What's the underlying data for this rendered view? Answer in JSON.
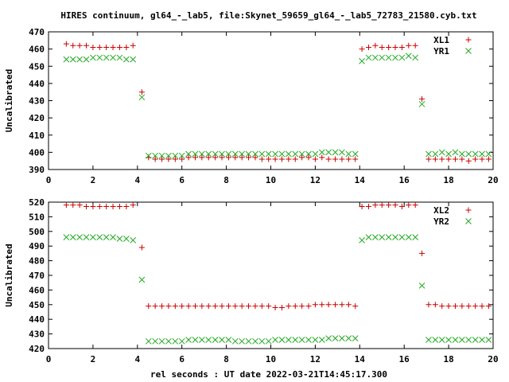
{
  "title": "HIRES continuum, gl64_-_lab5, file:Skynet_59659_gl64_-_lab5_72783_21580.cyb.txt",
  "xlabel": "rel seconds : UT date 2022-03-21T14:45:17.300",
  "colors": {
    "red": "#cc0000",
    "green": "#22aa22"
  },
  "chart_data": [
    {
      "type": "scatter",
      "ylabel": "Uncalibrated",
      "xlim": [
        0,
        20
      ],
      "ylim": [
        390,
        470
      ],
      "xticks": [
        "0",
        "2",
        "4",
        "6",
        "8",
        "10",
        "12",
        "14",
        "16",
        "18",
        "20"
      ],
      "yticks": [
        "390",
        "400",
        "410",
        "420",
        "430",
        "440",
        "450",
        "460",
        "470"
      ],
      "legend_position": "top-right",
      "series": [
        {
          "name": "XL1",
          "marker": "plus",
          "color": "red",
          "x": [
            0.8,
            1.1,
            1.4,
            1.7,
            2.0,
            2.3,
            2.6,
            2.9,
            3.2,
            3.5,
            3.8,
            4.2,
            4.5,
            4.8,
            5.1,
            5.4,
            5.7,
            6.0,
            6.3,
            6.6,
            6.9,
            7.2,
            7.5,
            7.8,
            8.1,
            8.4,
            8.7,
            9.0,
            9.3,
            9.6,
            9.9,
            10.2,
            10.5,
            10.8,
            11.1,
            11.4,
            11.7,
            12.0,
            12.3,
            12.6,
            12.9,
            13.2,
            13.5,
            13.8,
            14.1,
            14.4,
            14.7,
            15.0,
            15.3,
            15.6,
            15.9,
            16.2,
            16.5,
            16.8,
            17.1,
            17.4,
            17.7,
            18.0,
            18.3,
            18.6,
            18.9,
            19.2,
            19.5,
            19.8
          ],
          "y": [
            463,
            462,
            462,
            462,
            461,
            461,
            461,
            461,
            461,
            461,
            462,
            435,
            397,
            396,
            396,
            396,
            396,
            396,
            397,
            397,
            397,
            397,
            397,
            397,
            397,
            397,
            397,
            397,
            397,
            396,
            396,
            396,
            396,
            396,
            396,
            397,
            397,
            396,
            397,
            396,
            396,
            396,
            396,
            396,
            460,
            461,
            462,
            461,
            461,
            461,
            461,
            462,
            462,
            431,
            396,
            396,
            396,
            396,
            396,
            396,
            395,
            396,
            396,
            396
          ]
        },
        {
          "name": "YR1",
          "marker": "cross",
          "color": "green",
          "x": [
            0.8,
            1.1,
            1.4,
            1.7,
            2.0,
            2.3,
            2.6,
            2.9,
            3.2,
            3.5,
            3.8,
            4.2,
            4.5,
            4.8,
            5.1,
            5.4,
            5.7,
            6.0,
            6.3,
            6.6,
            6.9,
            7.2,
            7.5,
            7.8,
            8.1,
            8.4,
            8.7,
            9.0,
            9.3,
            9.6,
            9.9,
            10.2,
            10.5,
            10.8,
            11.1,
            11.4,
            11.7,
            12.0,
            12.3,
            12.6,
            12.9,
            13.2,
            13.5,
            13.8,
            14.1,
            14.4,
            14.7,
            15.0,
            15.3,
            15.6,
            15.9,
            16.2,
            16.5,
            16.8,
            17.1,
            17.4,
            17.7,
            18.0,
            18.3,
            18.6,
            18.9,
            19.2,
            19.5,
            19.8
          ],
          "y": [
            454,
            454,
            454,
            454,
            455,
            455,
            455,
            455,
            455,
            454,
            454,
            432,
            398,
            398,
            398,
            398,
            398,
            398,
            399,
            399,
            399,
            399,
            399,
            399,
            399,
            399,
            399,
            399,
            399,
            399,
            399,
            399,
            399,
            399,
            399,
            399,
            399,
            399,
            400,
            400,
            400,
            400,
            399,
            399,
            453,
            455,
            455,
            455,
            455,
            455,
            455,
            456,
            455,
            428,
            399,
            399,
            400,
            399,
            400,
            399,
            399,
            399,
            399,
            399
          ]
        }
      ]
    },
    {
      "type": "scatter",
      "ylabel": "Uncalibrated",
      "xlim": [
        0,
        20
      ],
      "ylim": [
        420,
        520
      ],
      "xticks": [
        "0",
        "2",
        "4",
        "6",
        "8",
        "10",
        "12",
        "14",
        "16",
        "18",
        "20"
      ],
      "yticks": [
        "420",
        "430",
        "440",
        "450",
        "460",
        "470",
        "480",
        "490",
        "500",
        "510",
        "520"
      ],
      "legend_position": "top-right",
      "series": [
        {
          "name": "XL2",
          "marker": "plus",
          "color": "red",
          "x": [
            0.8,
            1.1,
            1.4,
            1.7,
            2.0,
            2.3,
            2.6,
            2.9,
            3.2,
            3.5,
            3.8,
            4.2,
            4.5,
            4.8,
            5.1,
            5.4,
            5.7,
            6.0,
            6.3,
            6.6,
            6.9,
            7.2,
            7.5,
            7.8,
            8.1,
            8.4,
            8.7,
            9.0,
            9.3,
            9.6,
            9.9,
            10.2,
            10.5,
            10.8,
            11.1,
            11.4,
            11.7,
            12.0,
            12.3,
            12.6,
            12.9,
            13.2,
            13.5,
            13.8,
            14.1,
            14.4,
            14.7,
            15.0,
            15.3,
            15.6,
            15.9,
            16.2,
            16.5,
            16.8,
            17.1,
            17.4,
            17.7,
            18.0,
            18.3,
            18.6,
            18.9,
            19.2,
            19.5,
            19.8
          ],
          "y": [
            518,
            518,
            518,
            517,
            517,
            517,
            517,
            517,
            517,
            517,
            518,
            489,
            449,
            449,
            449,
            449,
            449,
            449,
            449,
            449,
            449,
            449,
            449,
            449,
            449,
            449,
            449,
            449,
            449,
            449,
            449,
            448,
            448,
            449,
            449,
            449,
            449,
            450,
            450,
            450,
            450,
            450,
            450,
            449,
            517,
            517,
            518,
            518,
            518,
            518,
            517,
            518,
            518,
            485,
            450,
            450,
            449,
            449,
            449,
            449,
            449,
            449,
            449,
            449
          ]
        },
        {
          "name": "YR2",
          "marker": "cross",
          "color": "green",
          "x": [
            0.8,
            1.1,
            1.4,
            1.7,
            2.0,
            2.3,
            2.6,
            2.9,
            3.2,
            3.5,
            3.8,
            4.2,
            4.5,
            4.8,
            5.1,
            5.4,
            5.7,
            6.0,
            6.3,
            6.6,
            6.9,
            7.2,
            7.5,
            7.8,
            8.1,
            8.4,
            8.7,
            9.0,
            9.3,
            9.6,
            9.9,
            10.2,
            10.5,
            10.8,
            11.1,
            11.4,
            11.7,
            12.0,
            12.3,
            12.6,
            12.9,
            13.2,
            13.5,
            13.8,
            14.1,
            14.4,
            14.7,
            15.0,
            15.3,
            15.6,
            15.9,
            16.2,
            16.5,
            16.8,
            17.1,
            17.4,
            17.7,
            18.0,
            18.3,
            18.6,
            18.9,
            19.2,
            19.5,
            19.8
          ],
          "y": [
            496,
            496,
            496,
            496,
            496,
            496,
            496,
            496,
            495,
            495,
            494,
            467,
            425,
            425,
            425,
            425,
            425,
            425,
            426,
            426,
            426,
            426,
            426,
            426,
            426,
            425,
            425,
            425,
            425,
            425,
            425,
            426,
            426,
            426,
            426,
            426,
            426,
            426,
            426,
            427,
            427,
            427,
            427,
            427,
            494,
            496,
            496,
            496,
            496,
            496,
            496,
            496,
            496,
            463,
            426,
            426,
            426,
            426,
            426,
            426,
            426,
            426,
            426,
            426
          ]
        }
      ]
    }
  ]
}
